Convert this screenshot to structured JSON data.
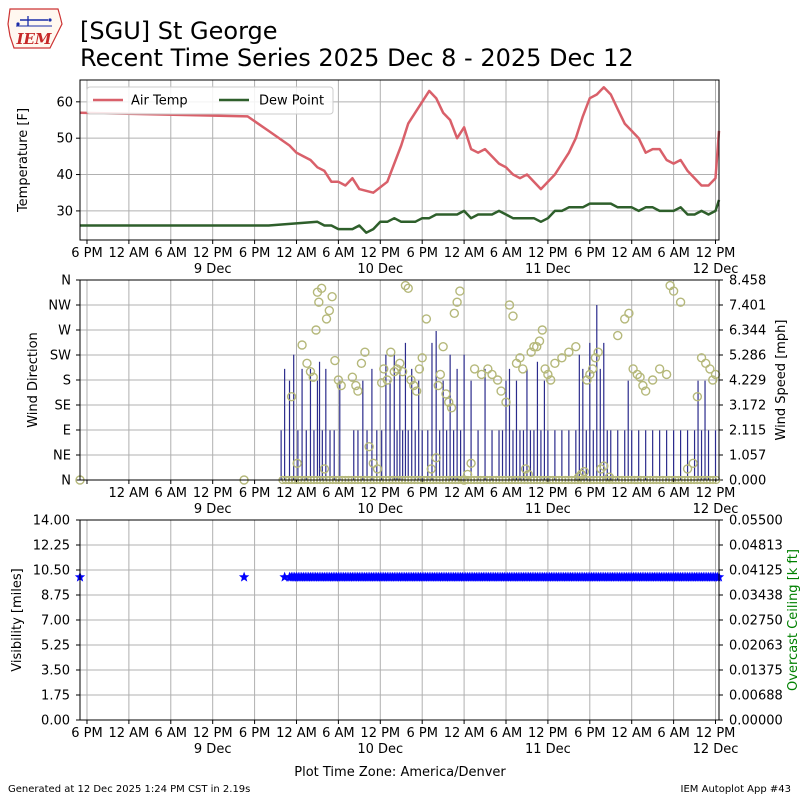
{
  "header": {
    "logo_text": "IEM",
    "title_line1": "[SGU] St George",
    "title_line2": "Recent Time Series 2025 Dec 8 - 2025 Dec 12"
  },
  "footer": {
    "generated": "Generated at 12 Dec 2025 1:24 PM CST in 2.19s",
    "app": "IEM Autoplot App #43"
  },
  "time_axis": {
    "tick_labels": [
      "6 PM",
      "12 AM",
      "6 AM",
      "12 PM",
      "6 PM",
      "12 AM",
      "6 AM",
      "12 PM",
      "6 PM",
      "12 AM",
      "6 AM",
      "12 PM",
      "6 PM",
      "12 AM",
      "6 AM",
      "12 PM"
    ],
    "day_labels": [
      "9 Dec",
      "10 Dec",
      "11 Dec",
      "12 Dec"
    ],
    "xlabel": "Plot Time Zone: America/Denver"
  },
  "colors": {
    "air_temp": "#d9606a",
    "dew_point": "#2e5f2b",
    "wind_dir": "#b5b87a",
    "wind_speed": "#2b2b8c",
    "visibility": "#0000ff",
    "ceiling_axis": "#008000",
    "grid": "#b0b0b0"
  },
  "chart_data": [
    {
      "type": "line",
      "x_unit": "hours since 2025-12-08 12:00 America/Denver",
      "xlim": [
        5.0,
        96.5
      ],
      "ylabel": "Temperature [F]",
      "ylim": [
        22,
        66
      ],
      "yticks": [
        30,
        40,
        50,
        60
      ],
      "grid": true,
      "legend": "top-left",
      "series": [
        {
          "name": "Air Temp",
          "x": [
            5,
            29,
            32,
            35,
            36,
            37,
            38,
            39,
            40,
            41,
            42,
            43,
            44,
            45,
            47,
            49,
            51,
            52,
            53,
            54,
            55,
            56,
            57,
            58,
            59,
            60,
            61,
            62,
            63,
            64,
            65,
            66,
            67,
            68,
            69,
            71,
            73,
            75,
            76,
            77,
            78,
            79,
            80,
            81,
            82,
            83,
            84,
            85,
            86,
            87,
            88,
            89,
            90,
            91,
            92,
            94,
            95,
            96,
            96.5
          ],
          "y": [
            57,
            56,
            52,
            48,
            46,
            45,
            44,
            42,
            41,
            38,
            38,
            37,
            39,
            36,
            35,
            38,
            48,
            54,
            57,
            60,
            63,
            61,
            57,
            55,
            50,
            53,
            47,
            46,
            47,
            45,
            43,
            42,
            40,
            39,
            40,
            36,
            40,
            46,
            50,
            56,
            61,
            62,
            64,
            62,
            58,
            54,
            52,
            50,
            46,
            47,
            47,
            44,
            43,
            44,
            41,
            37,
            37,
            39,
            52
          ]
        },
        {
          "name": "Dew Point",
          "x": [
            5,
            29,
            32,
            39,
            40,
            41,
            42,
            43,
            44,
            45,
            46,
            47,
            48,
            49,
            50,
            51,
            52,
            53,
            54,
            55,
            56,
            57,
            58,
            59,
            60,
            61,
            62,
            63,
            64,
            65,
            66,
            67,
            68,
            69,
            70,
            71,
            72,
            73,
            74,
            75,
            76,
            77,
            78,
            79,
            80,
            81,
            82,
            83,
            84,
            85,
            86,
            87,
            88,
            89,
            90,
            91,
            92,
            93,
            94,
            95,
            96,
            96.5
          ],
          "y": [
            26,
            26,
            26,
            27,
            26,
            26,
            25,
            25,
            25,
            26,
            24,
            25,
            27,
            27,
            28,
            27,
            27,
            27,
            28,
            28,
            29,
            29,
            29,
            29,
            30,
            28,
            29,
            29,
            29,
            30,
            29,
            28,
            28,
            28,
            28,
            27,
            28,
            30,
            30,
            31,
            31,
            31,
            32,
            32,
            32,
            32,
            31,
            31,
            31,
            30,
            31,
            31,
            30,
            30,
            30,
            31,
            29,
            29,
            30,
            29,
            30,
            33
          ]
        }
      ]
    },
    {
      "type": "scatter",
      "ylabel": "Wind Direction",
      "y2label": "Wind Speed [mph]",
      "xlim": [
        5.0,
        96.5
      ],
      "direction_ticks": [
        "N",
        "NE",
        "E",
        "SE",
        "S",
        "SW",
        "W",
        "NW",
        "N"
      ],
      "speed_ticks": [
        "0.000",
        "1.057",
        "2.115",
        "3.172",
        "4.229",
        "5.286",
        "6.344",
        "7.401",
        "8.458"
      ],
      "speed_max": 8.458,
      "grid": true,
      "series": [
        {
          "name": "Wind Direction",
          "x": [
            5,
            28.5,
            35.3,
            36.1,
            36.8,
            37.5,
            38.0,
            38.4,
            38.8,
            39.0,
            39.2,
            39.6,
            40.0,
            40.3,
            40.7,
            41.1,
            41.5,
            42.0,
            42.4,
            44.0,
            44.5,
            44.8,
            45.3,
            45.8,
            46.4,
            47.0,
            47.6,
            48.2,
            48.5,
            49.0,
            49.5,
            50.0,
            50.4,
            50.8,
            51.2,
            51.6,
            52.0,
            52.4,
            52.8,
            53.2,
            53.6,
            54.0,
            54.6,
            55.3,
            56.0,
            56.3,
            56.6,
            57.0,
            57.4,
            57.8,
            58.2,
            58.6,
            59.0,
            59.4,
            60.0,
            60.5,
            61.0,
            61.5,
            62.5,
            63.4,
            64.0,
            64.8,
            65.3,
            66.0,
            66.5,
            67.0,
            67.5,
            68.0,
            68.4,
            68.8,
            69.2,
            69.6,
            70.0,
            70.4,
            70.8,
            71.2,
            71.6,
            72.0,
            72.4,
            73.0,
            74.0,
            75.0,
            76.0,
            76.4,
            76.8,
            77.2,
            77.6,
            78.0,
            78.4,
            78.8,
            79.2,
            79.6,
            80.0,
            80.8,
            82.0,
            83.0,
            83.6,
            84.2,
            84.8,
            85.2,
            85.6,
            86.0,
            87.0,
            88.0,
            89.0,
            89.5,
            90.0,
            91.0,
            92.0,
            92.8,
            93.4,
            94.0,
            94.6,
            95.2,
            95.6,
            96.0
          ],
          "y": [
            0,
            0,
            150,
            30,
            243,
            210,
            195,
            185,
            270,
            338,
            320,
            345,
            20,
            290,
            305,
            330,
            215,
            180,
            170,
            185,
            170,
            160,
            210,
            230,
            60,
            30,
            20,
            175,
            200,
            180,
            230,
            195,
            200,
            210,
            195,
            350,
            345,
            180,
            170,
            160,
            200,
            220,
            290,
            20,
            40,
            170,
            190,
            240,
            155,
            140,
            130,
            300,
            320,
            340,
            0,
            10,
            30,
            200,
            190,
            200,
            190,
            180,
            160,
            140,
            315,
            295,
            210,
            220,
            200,
            20,
            10,
            230,
            240,
            240,
            250,
            270,
            200,
            190,
            180,
            210,
            220,
            230,
            240,
            5,
            10,
            15,
            180,
            190,
            200,
            220,
            230,
            20,
            25,
            5,
            260,
            290,
            300,
            200,
            190,
            185,
            170,
            160,
            180,
            200,
            190,
            350,
            340,
            320,
            20,
            30,
            150,
            220,
            210,
            200,
            180,
            190
          ],
          "y_unit": "degrees"
        },
        {
          "name": "Wind Speed",
          "type": "bar",
          "x": [
            33.8,
            34.3,
            35.0,
            35.6,
            36.2,
            36.8,
            37.4,
            38.0,
            38.5,
            39.0,
            39.3,
            39.7,
            40.2,
            40.8,
            41.4,
            42.2,
            44.2,
            44.8,
            45.5,
            46.1,
            46.8,
            47.5,
            48.2,
            48.8,
            49.4,
            50.0,
            50.4,
            50.8,
            51.2,
            51.6,
            52.0,
            52.5,
            53.0,
            53.5,
            54.0,
            54.8,
            55.4,
            56.0,
            56.5,
            57.0,
            57.5,
            58.0,
            58.5,
            59.0,
            59.5,
            60.0,
            61.0,
            62.0,
            63.0,
            64.0,
            65.0,
            65.5,
            66.0,
            66.5,
            67.0,
            67.5,
            68.0,
            68.5,
            69.0,
            69.5,
            70.0,
            70.5,
            71.0,
            71.5,
            72.0,
            73.0,
            74.0,
            75.0,
            76.0,
            76.5,
            77.0,
            77.5,
            78.0,
            78.5,
            79.0,
            79.5,
            80.0,
            80.5,
            81.0,
            82.0,
            83.0,
            83.5,
            84.0,
            85.0,
            86.0,
            87.0,
            88.0,
            89.0,
            90.0,
            91.0,
            92.0,
            93.0,
            93.5,
            94.0,
            94.5,
            95.0,
            96.0
          ],
          "y": [
            2.1,
            4.7,
            4.2,
            5.3,
            2.1,
            4.7,
            2.1,
            4.7,
            2.1,
            4.2,
            5.0,
            2.1,
            4.7,
            2.1,
            2.1,
            4.2,
            2.1,
            2.1,
            4.2,
            2.1,
            4.7,
            2.1,
            2.1,
            5.3,
            4.2,
            5.3,
            2.1,
            4.7,
            2.1,
            5.8,
            2.1,
            4.7,
            2.1,
            4.2,
            2.1,
            2.1,
            5.8,
            6.3,
            2.1,
            4.2,
            2.1,
            5.3,
            2.1,
            4.7,
            2.1,
            5.3,
            4.2,
            2.1,
            4.7,
            2.1,
            2.1,
            2.1,
            4.2,
            4.7,
            2.1,
            4.2,
            2.1,
            2.1,
            4.7,
            2.1,
            2.1,
            5.0,
            2.1,
            4.2,
            2.1,
            2.1,
            2.1,
            2.1,
            2.1,
            5.3,
            4.7,
            2.1,
            5.8,
            2.1,
            7.4,
            4.7,
            5.8,
            2.1,
            2.1,
            2.1,
            2.1,
            4.2,
            2.1,
            2.1,
            2.1,
            2.1,
            2.1,
            2.1,
            2.1,
            2.1,
            2.1,
            2.1,
            4.2,
            2.1,
            4.2,
            2.1,
            2.1
          ],
          "y_unit": "mph"
        }
      ]
    },
    {
      "type": "scatter",
      "ylabel": "Visibility [miles]",
      "y2label": "Overcast Ceiling [k ft]",
      "xlim": [
        5.0,
        96.5
      ],
      "ylim": [
        0,
        14
      ],
      "y2lim": [
        0,
        0.055
      ],
      "yticks": [
        "0.00",
        "1.75",
        "3.50",
        "5.25",
        "7.00",
        "8.75",
        "10.50",
        "12.25",
        "14.00"
      ],
      "y2ticks": [
        "0.00000",
        "0.00688",
        "0.01375",
        "0.02063",
        "0.02750",
        "0.03438",
        "0.04125",
        "0.04813",
        "0.05500"
      ],
      "grid": true,
      "series": [
        {
          "name": "Visibility",
          "marker": "star",
          "x_points": [
            5,
            28.5,
            34.3
          ],
          "y_points": [
            10,
            10,
            10
          ],
          "continuous_from": 35.0,
          "continuous_to": 96.5,
          "continuous_value": 10
        }
      ]
    }
  ]
}
